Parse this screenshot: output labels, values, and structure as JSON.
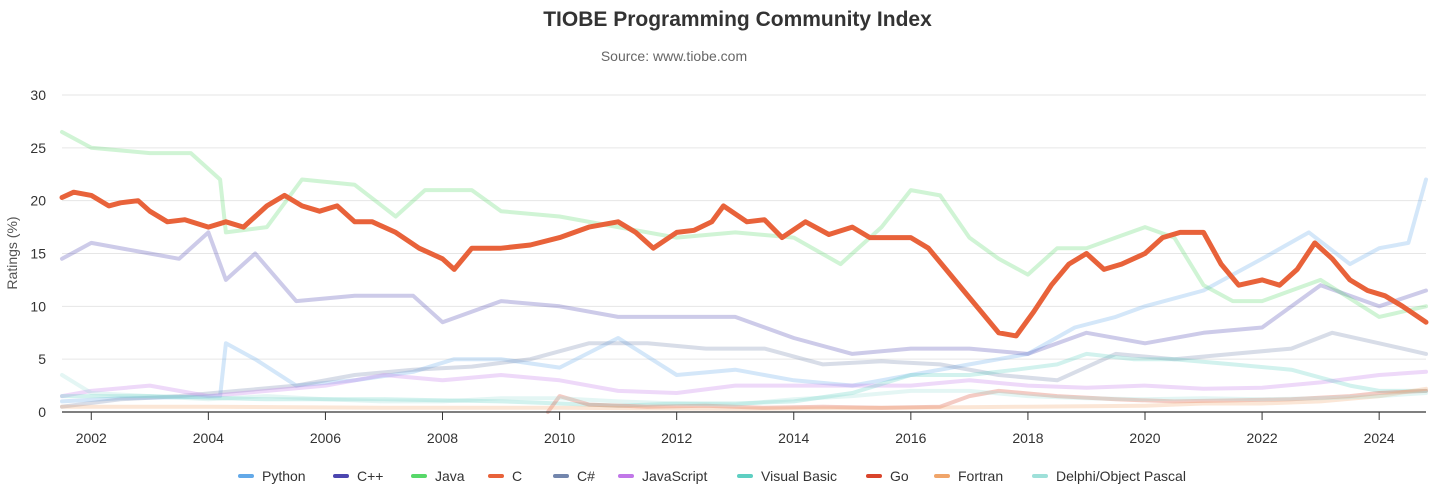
{
  "chart_data": {
    "type": "line",
    "title": "TIOBE Programming Community Index",
    "subtitle": "Source: www.tiobe.com",
    "ylabel": "Ratings (%)",
    "xlabel": "",
    "xlim": [
      2001.5,
      2024.8
    ],
    "ylim": [
      0,
      30
    ],
    "x_ticks": [
      2002,
      2004,
      2006,
      2008,
      2010,
      2012,
      2014,
      2016,
      2018,
      2020,
      2022,
      2024
    ],
    "y_ticks": [
      0,
      5,
      10,
      15,
      20,
      25,
      30
    ],
    "grid": true,
    "legend_position": "bottom",
    "highlighted_series": "C",
    "series": [
      {
        "name": "Python",
        "color": "#63a9e8",
        "points": [
          [
            2001.5,
            1.0
          ],
          [
            2002.5,
            1.3
          ],
          [
            2003.5,
            1.4
          ],
          [
            2004.2,
            1.5
          ],
          [
            2004.3,
            6.5
          ],
          [
            2004.8,
            5.0
          ],
          [
            2005.5,
            2.5
          ],
          [
            2006.5,
            3.0
          ],
          [
            2007.5,
            3.8
          ],
          [
            2008.2,
            5.0
          ],
          [
            2009,
            5.0
          ],
          [
            2010,
            4.2
          ],
          [
            2011,
            7.0
          ],
          [
            2012,
            3.5
          ],
          [
            2013,
            4.0
          ],
          [
            2014,
            3.0
          ],
          [
            2015,
            2.5
          ],
          [
            2016,
            3.5
          ],
          [
            2017,
            4.5
          ],
          [
            2018,
            5.5
          ],
          [
            2018.8,
            8.0
          ],
          [
            2019.5,
            9.0
          ],
          [
            2020,
            10.0
          ],
          [
            2021,
            11.5
          ],
          [
            2022,
            14.5
          ],
          [
            2022.8,
            17.0
          ],
          [
            2023.5,
            14.0
          ],
          [
            2024,
            15.5
          ],
          [
            2024.5,
            16.0
          ],
          [
            2024.8,
            22.0
          ]
        ]
      },
      {
        "name": "C++",
        "color": "#4c46b0",
        "points": [
          [
            2001.5,
            14.5
          ],
          [
            2002,
            16.0
          ],
          [
            2003,
            15.0
          ],
          [
            2003.5,
            14.5
          ],
          [
            2004,
            17.0
          ],
          [
            2004.3,
            12.5
          ],
          [
            2004.8,
            15.0
          ],
          [
            2005.5,
            10.5
          ],
          [
            2006.5,
            11.0
          ],
          [
            2007.5,
            11.0
          ],
          [
            2008,
            8.5
          ],
          [
            2009,
            10.5
          ],
          [
            2010,
            10.0
          ],
          [
            2011,
            9.0
          ],
          [
            2012,
            9.0
          ],
          [
            2013,
            9.0
          ],
          [
            2014,
            7.0
          ],
          [
            2015,
            5.5
          ],
          [
            2016,
            6.0
          ],
          [
            2017,
            6.0
          ],
          [
            2018,
            5.5
          ],
          [
            2019,
            7.5
          ],
          [
            2020,
            6.5
          ],
          [
            2021,
            7.5
          ],
          [
            2022,
            8.0
          ],
          [
            2023,
            12.0
          ],
          [
            2024,
            10.0
          ],
          [
            2024.8,
            11.5
          ]
        ]
      },
      {
        "name": "Java",
        "color": "#57d869",
        "points": [
          [
            2001.5,
            26.5
          ],
          [
            2002,
            25.0
          ],
          [
            2003,
            24.5
          ],
          [
            2003.7,
            24.5
          ],
          [
            2004.2,
            22.0
          ],
          [
            2004.3,
            17.0
          ],
          [
            2005,
            17.5
          ],
          [
            2005.6,
            22.0
          ],
          [
            2006.5,
            21.5
          ],
          [
            2007.2,
            18.5
          ],
          [
            2007.7,
            21.0
          ],
          [
            2008.5,
            21.0
          ],
          [
            2009,
            19.0
          ],
          [
            2010,
            18.5
          ],
          [
            2011,
            17.5
          ],
          [
            2012,
            16.5
          ],
          [
            2013,
            17.0
          ],
          [
            2014,
            16.5
          ],
          [
            2014.8,
            14.0
          ],
          [
            2015.5,
            17.5
          ],
          [
            2016,
            21.0
          ],
          [
            2016.5,
            20.5
          ],
          [
            2017,
            16.5
          ],
          [
            2017.5,
            14.5
          ],
          [
            2018,
            13.0
          ],
          [
            2018.5,
            15.5
          ],
          [
            2019,
            15.5
          ],
          [
            2019.5,
            16.5
          ],
          [
            2020,
            17.5
          ],
          [
            2020.5,
            16.5
          ],
          [
            2021,
            12.0
          ],
          [
            2021.5,
            10.5
          ],
          [
            2022,
            10.5
          ],
          [
            2023,
            12.5
          ],
          [
            2024,
            9.0
          ],
          [
            2024.8,
            10.0
          ]
        ]
      },
      {
        "name": "C",
        "color": "#e8623a",
        "points": [
          [
            2001.5,
            20.3
          ],
          [
            2001.7,
            20.8
          ],
          [
            2002,
            20.5
          ],
          [
            2002.3,
            19.5
          ],
          [
            2002.5,
            19.8
          ],
          [
            2002.8,
            20.0
          ],
          [
            2003,
            19.0
          ],
          [
            2003.3,
            18.0
          ],
          [
            2003.6,
            18.2
          ],
          [
            2004,
            17.5
          ],
          [
            2004.3,
            18.0
          ],
          [
            2004.6,
            17.5
          ],
          [
            2005,
            19.5
          ],
          [
            2005.3,
            20.5
          ],
          [
            2005.6,
            19.5
          ],
          [
            2005.9,
            19.0
          ],
          [
            2006.2,
            19.5
          ],
          [
            2006.5,
            18.0
          ],
          [
            2006.8,
            18.0
          ],
          [
            2007.2,
            17.0
          ],
          [
            2007.6,
            15.5
          ],
          [
            2008,
            14.5
          ],
          [
            2008.2,
            13.5
          ],
          [
            2008.5,
            15.5
          ],
          [
            2009,
            15.5
          ],
          [
            2009.5,
            15.8
          ],
          [
            2010,
            16.5
          ],
          [
            2010.5,
            17.5
          ],
          [
            2011,
            18.0
          ],
          [
            2011.3,
            17.0
          ],
          [
            2011.6,
            15.5
          ],
          [
            2012,
            17.0
          ],
          [
            2012.3,
            17.2
          ],
          [
            2012.6,
            18.0
          ],
          [
            2012.8,
            19.5
          ],
          [
            2013.2,
            18.0
          ],
          [
            2013.5,
            18.2
          ],
          [
            2013.8,
            16.5
          ],
          [
            2014.2,
            18.0
          ],
          [
            2014.6,
            16.8
          ],
          [
            2015,
            17.5
          ],
          [
            2015.3,
            16.5
          ],
          [
            2015.6,
            16.5
          ],
          [
            2016,
            16.5
          ],
          [
            2016.3,
            15.5
          ],
          [
            2016.6,
            13.5
          ],
          [
            2016.9,
            11.5
          ],
          [
            2017.2,
            9.5
          ],
          [
            2017.5,
            7.5
          ],
          [
            2017.8,
            7.2
          ],
          [
            2018.1,
            9.5
          ],
          [
            2018.4,
            12.0
          ],
          [
            2018.7,
            14.0
          ],
          [
            2019,
            15.0
          ],
          [
            2019.3,
            13.5
          ],
          [
            2019.6,
            14.0
          ],
          [
            2020,
            15.0
          ],
          [
            2020.3,
            16.5
          ],
          [
            2020.6,
            17.0
          ],
          [
            2021,
            17.0
          ],
          [
            2021.3,
            14.0
          ],
          [
            2021.6,
            12.0
          ],
          [
            2022,
            12.5
          ],
          [
            2022.3,
            12.0
          ],
          [
            2022.6,
            13.5
          ],
          [
            2022.9,
            16.0
          ],
          [
            2023.2,
            14.5
          ],
          [
            2023.5,
            12.5
          ],
          [
            2023.8,
            11.5
          ],
          [
            2024.1,
            11.0
          ],
          [
            2024.4,
            10.0
          ],
          [
            2024.8,
            8.5
          ]
        ]
      },
      {
        "name": "C#",
        "color": "#7386ad",
        "points": [
          [
            2001.5,
            0.5
          ],
          [
            2002.5,
            1.2
          ],
          [
            2003.5,
            1.5
          ],
          [
            2004.5,
            2.0
          ],
          [
            2005.5,
            2.5
          ],
          [
            2006.5,
            3.5
          ],
          [
            2007.5,
            4.0
          ],
          [
            2008.5,
            4.3
          ],
          [
            2009.5,
            5.0
          ],
          [
            2010.5,
            6.5
          ],
          [
            2011.5,
            6.5
          ],
          [
            2012.5,
            6.0
          ],
          [
            2013.5,
            6.0
          ],
          [
            2014.5,
            4.5
          ],
          [
            2015.5,
            4.8
          ],
          [
            2016.5,
            4.5
          ],
          [
            2017.5,
            3.5
          ],
          [
            2018.5,
            3.0
          ],
          [
            2019.5,
            5.5
          ],
          [
            2020.5,
            5.0
          ],
          [
            2021.5,
            5.5
          ],
          [
            2022.5,
            6.0
          ],
          [
            2023.2,
            7.5
          ],
          [
            2024,
            6.5
          ],
          [
            2024.8,
            5.5
          ]
        ]
      },
      {
        "name": "JavaScript",
        "color": "#c177e8",
        "points": [
          [
            2001.5,
            1.5
          ],
          [
            2002,
            2.0
          ],
          [
            2003,
            2.5
          ],
          [
            2004,
            1.5
          ],
          [
            2005,
            2.0
          ],
          [
            2006,
            2.5
          ],
          [
            2007,
            3.5
          ],
          [
            2008,
            3.0
          ],
          [
            2009,
            3.5
          ],
          [
            2010,
            3.0
          ],
          [
            2011,
            2.0
          ],
          [
            2012,
            1.8
          ],
          [
            2013,
            2.5
          ],
          [
            2014,
            2.5
          ],
          [
            2015,
            2.5
          ],
          [
            2016,
            2.5
          ],
          [
            2017,
            3.0
          ],
          [
            2018,
            2.5
          ],
          [
            2019,
            2.3
          ],
          [
            2020,
            2.5
          ],
          [
            2021,
            2.2
          ],
          [
            2022,
            2.3
          ],
          [
            2023,
            2.8
          ],
          [
            2024,
            3.5
          ],
          [
            2024.8,
            3.8
          ]
        ]
      },
      {
        "name": "Visual Basic",
        "color": "#5ecfc2",
        "points": [
          [
            2001.5,
            1.5
          ],
          [
            2003,
            1.5
          ],
          [
            2005,
            1.2
          ],
          [
            2007,
            1.2
          ],
          [
            2009,
            1.0
          ],
          [
            2010,
            0.8
          ],
          [
            2011,
            0.6
          ],
          [
            2012,
            0.8
          ],
          [
            2013,
            0.8
          ],
          [
            2014,
            1.0
          ],
          [
            2015,
            1.8
          ],
          [
            2016,
            3.5
          ],
          [
            2017,
            3.5
          ],
          [
            2017.8,
            4.0
          ],
          [
            2018.5,
            4.5
          ],
          [
            2019,
            5.5
          ],
          [
            2019.8,
            5.0
          ],
          [
            2020.5,
            5.0
          ],
          [
            2021.5,
            4.5
          ],
          [
            2022.5,
            4.0
          ],
          [
            2023.5,
            2.5
          ],
          [
            2024,
            2.0
          ],
          [
            2024.8,
            2.0
          ]
        ]
      },
      {
        "name": "Go",
        "color": "#d9442b",
        "points": [
          [
            2009.8,
            0.0
          ],
          [
            2010,
            1.5
          ],
          [
            2010.5,
            0.7
          ],
          [
            2011.5,
            0.5
          ],
          [
            2012.5,
            0.6
          ],
          [
            2013.5,
            0.4
          ],
          [
            2014.5,
            0.5
          ],
          [
            2015.5,
            0.4
          ],
          [
            2016.5,
            0.5
          ],
          [
            2017,
            1.5
          ],
          [
            2017.5,
            2.0
          ],
          [
            2018.5,
            1.5
          ],
          [
            2019.5,
            1.2
          ],
          [
            2020.5,
            1.0
          ],
          [
            2021.5,
            1.1
          ],
          [
            2022.5,
            1.2
          ],
          [
            2023.5,
            1.5
          ],
          [
            2024,
            1.8
          ],
          [
            2024.8,
            2.0
          ]
        ]
      },
      {
        "name": "Fortran",
        "color": "#f0a56a",
        "points": [
          [
            2001.5,
            0.5
          ],
          [
            2004,
            0.5
          ],
          [
            2007,
            0.4
          ],
          [
            2010,
            0.4
          ],
          [
            2013,
            0.3
          ],
          [
            2016,
            0.4
          ],
          [
            2018,
            0.5
          ],
          [
            2020,
            0.6
          ],
          [
            2021,
            0.8
          ],
          [
            2022,
            0.8
          ],
          [
            2023,
            1.0
          ],
          [
            2024,
            1.5
          ],
          [
            2024.8,
            2.2
          ]
        ]
      },
      {
        "name": "Delphi/Object Pascal",
        "color": "#9ee0d9",
        "points": [
          [
            2001.5,
            3.5
          ],
          [
            2002,
            1.8
          ],
          [
            2003,
            1.5
          ],
          [
            2004,
            1.2
          ],
          [
            2005,
            1.5
          ],
          [
            2006,
            1.2
          ],
          [
            2007,
            1.0
          ],
          [
            2008,
            1.0
          ],
          [
            2009,
            1.3
          ],
          [
            2010,
            1.3
          ],
          [
            2011,
            1.0
          ],
          [
            2012,
            0.8
          ],
          [
            2013,
            0.7
          ],
          [
            2014,
            1.2
          ],
          [
            2015,
            1.5
          ],
          [
            2016,
            2.0
          ],
          [
            2017,
            2.0
          ],
          [
            2018,
            1.5
          ],
          [
            2019,
            1.3
          ],
          [
            2020,
            1.2
          ],
          [
            2021,
            1.3
          ],
          [
            2022,
            1.2
          ],
          [
            2023,
            1.3
          ],
          [
            2024,
            1.5
          ],
          [
            2024.8,
            1.8
          ]
        ]
      }
    ]
  }
}
